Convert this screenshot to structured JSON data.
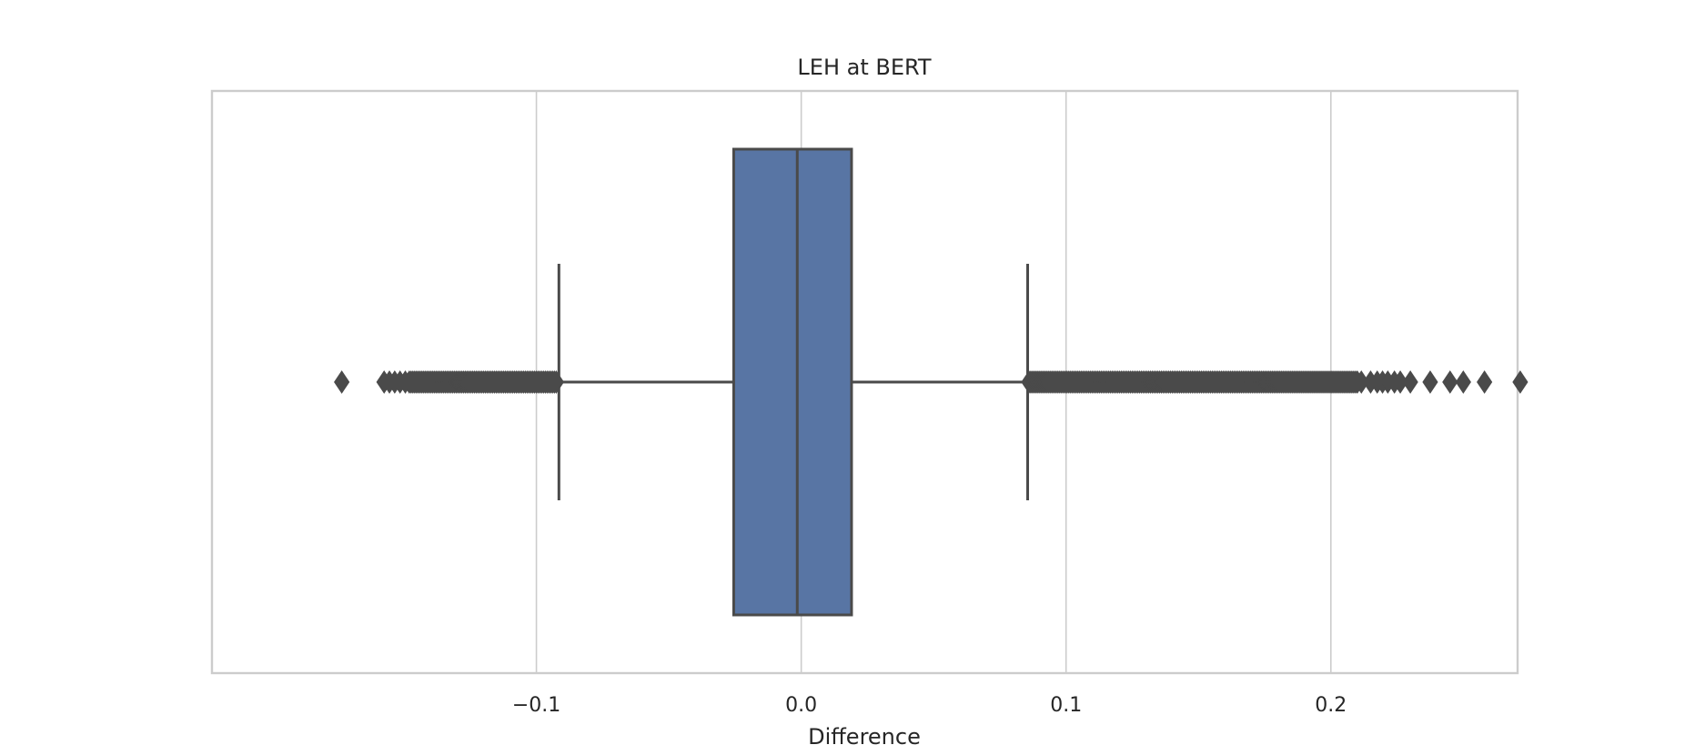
{
  "chart_data": {
    "type": "box",
    "title": "LEH at BERT",
    "xlabel": "Difference",
    "ylabel": "",
    "orientation": "horizontal",
    "xlim": [
      -0.2225,
      0.2705
    ],
    "xticks": [
      -0.1,
      0.0,
      0.1,
      0.2
    ],
    "xtick_labels": [
      "−0.1",
      "0.0",
      "0.1",
      "0.2"
    ],
    "grid": "x",
    "box": {
      "whisker_low": -0.0915,
      "q1": -0.0255,
      "median": -0.0015,
      "q3": 0.019,
      "whisker_high": 0.0855,
      "fill_color": "#5875a4",
      "line_color": "#4a4a4a"
    },
    "outliers_sparse": [
      -0.1735,
      -0.1575,
      -0.1555,
      -0.1535,
      -0.1515,
      -0.1495,
      0.2115,
      0.215,
      0.2175,
      0.2195,
      0.2215,
      0.224,
      0.2262,
      0.23,
      0.2375,
      0.245,
      0.25,
      0.258,
      0.2715
    ],
    "outliers_dense_ranges": [
      [
        -0.148,
        -0.0925
      ],
      [
        0.086,
        0.21
      ]
    ],
    "colors": {
      "grid": "#cccccc",
      "frame": "#cccccc",
      "marker": "#4a4a4a"
    }
  }
}
